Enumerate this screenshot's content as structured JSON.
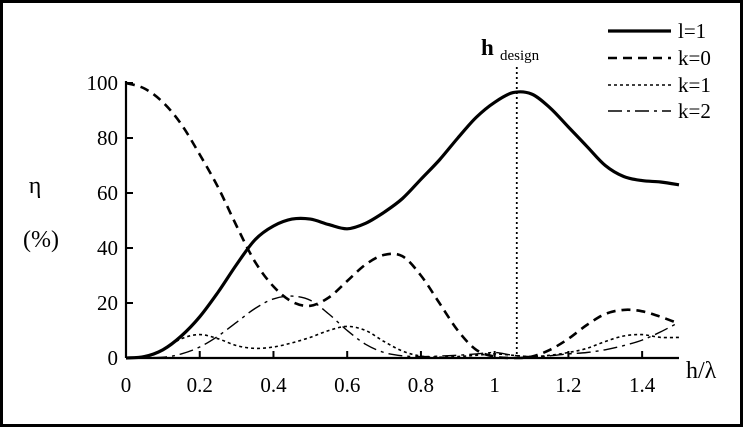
{
  "chart_data": {
    "type": "line",
    "title": "",
    "xlabel": "h/λ",
    "ylabel": "η",
    "ylabel_unit": "(%)",
    "xlim": [
      0,
      1.5
    ],
    "ylim": [
      0,
      100
    ],
    "x_ticks": [
      "0",
      "0.2",
      "0.4",
      "0.6",
      "0.8",
      "1",
      "1.2",
      "1.4"
    ],
    "y_ticks": [
      "0",
      "20",
      "40",
      "60",
      "80",
      "100"
    ],
    "grid": false,
    "legend_position": "top-right",
    "annotation": {
      "label_main": "h",
      "label_sub": "design",
      "x": 1.06
    },
    "series": [
      {
        "name": "l=1",
        "style": "solid",
        "points": [
          [
            0,
            0
          ],
          [
            0.05,
            0.5
          ],
          [
            0.1,
            3
          ],
          [
            0.15,
            8
          ],
          [
            0.2,
            15
          ],
          [
            0.25,
            24
          ],
          [
            0.3,
            34
          ],
          [
            0.35,
            43
          ],
          [
            0.4,
            48
          ],
          [
            0.45,
            50.5
          ],
          [
            0.5,
            50.5
          ],
          [
            0.55,
            48.5
          ],
          [
            0.6,
            47
          ],
          [
            0.65,
            49
          ],
          [
            0.7,
            53
          ],
          [
            0.75,
            58
          ],
          [
            0.8,
            65
          ],
          [
            0.85,
            72
          ],
          [
            0.9,
            80
          ],
          [
            0.95,
            87.5
          ],
          [
            1.0,
            93
          ],
          [
            1.05,
            96.5
          ],
          [
            1.1,
            96
          ],
          [
            1.15,
            91
          ],
          [
            1.2,
            84
          ],
          [
            1.25,
            77
          ],
          [
            1.3,
            70
          ],
          [
            1.35,
            66
          ],
          [
            1.4,
            64.5
          ],
          [
            1.45,
            64
          ],
          [
            1.5,
            63
          ]
        ]
      },
      {
        "name": "k=0",
        "style": "dashed",
        "points": [
          [
            0,
            100
          ],
          [
            0.05,
            98
          ],
          [
            0.1,
            93
          ],
          [
            0.15,
            85
          ],
          [
            0.2,
            74
          ],
          [
            0.25,
            62
          ],
          [
            0.3,
            48
          ],
          [
            0.35,
            35
          ],
          [
            0.4,
            26
          ],
          [
            0.45,
            20.5
          ],
          [
            0.5,
            19
          ],
          [
            0.55,
            22
          ],
          [
            0.6,
            28
          ],
          [
            0.65,
            34
          ],
          [
            0.7,
            37.5
          ],
          [
            0.75,
            37
          ],
          [
            0.8,
            30
          ],
          [
            0.85,
            20
          ],
          [
            0.9,
            10
          ],
          [
            0.95,
            3
          ],
          [
            1.0,
            0.5
          ],
          [
            1.05,
            0
          ],
          [
            1.1,
            0.5
          ],
          [
            1.15,
            3
          ],
          [
            1.2,
            7
          ],
          [
            1.25,
            12
          ],
          [
            1.3,
            16
          ],
          [
            1.35,
            17.5
          ],
          [
            1.4,
            17
          ],
          [
            1.45,
            15
          ],
          [
            1.5,
            12.5
          ]
        ]
      },
      {
        "name": "k=1",
        "style": "dotted",
        "points": [
          [
            0,
            0
          ],
          [
            0.05,
            0.5
          ],
          [
            0.1,
            3
          ],
          [
            0.15,
            7
          ],
          [
            0.2,
            8.5
          ],
          [
            0.25,
            7
          ],
          [
            0.3,
            4.5
          ],
          [
            0.35,
            3.5
          ],
          [
            0.4,
            4
          ],
          [
            0.45,
            5.5
          ],
          [
            0.5,
            7.5
          ],
          [
            0.55,
            10
          ],
          [
            0.6,
            11.5
          ],
          [
            0.65,
            10
          ],
          [
            0.7,
            6
          ],
          [
            0.75,
            2.5
          ],
          [
            0.8,
            0.7
          ],
          [
            0.85,
            0.3
          ],
          [
            0.9,
            0.5
          ],
          [
            0.95,
            1
          ],
          [
            1.0,
            1.5
          ],
          [
            1.05,
            1
          ],
          [
            1.1,
            0.5
          ],
          [
            1.15,
            1
          ],
          [
            1.2,
            2
          ],
          [
            1.25,
            3.5
          ],
          [
            1.3,
            6
          ],
          [
            1.35,
            8
          ],
          [
            1.4,
            8.5
          ],
          [
            1.45,
            7.5
          ],
          [
            1.5,
            7.5
          ]
        ]
      },
      {
        "name": "k=2",
        "style": "dashdot",
        "points": [
          [
            0,
            0
          ],
          [
            0.1,
            0.3
          ],
          [
            0.15,
            1.5
          ],
          [
            0.2,
            4
          ],
          [
            0.25,
            8
          ],
          [
            0.3,
            13
          ],
          [
            0.35,
            18
          ],
          [
            0.4,
            21.5
          ],
          [
            0.45,
            22.5
          ],
          [
            0.5,
            21
          ],
          [
            0.55,
            16
          ],
          [
            0.6,
            10
          ],
          [
            0.65,
            5
          ],
          [
            0.7,
            2
          ],
          [
            0.75,
            0.8
          ],
          [
            0.8,
            0.5
          ],
          [
            0.85,
            0.7
          ],
          [
            0.9,
            1
          ],
          [
            0.95,
            1.5
          ],
          [
            1.0,
            2
          ],
          [
            1.05,
            1
          ],
          [
            1.1,
            0.5
          ],
          [
            1.15,
            0.8
          ],
          [
            1.2,
            1.5
          ],
          [
            1.25,
            2
          ],
          [
            1.3,
            3
          ],
          [
            1.35,
            4.5
          ],
          [
            1.4,
            6.5
          ],
          [
            1.45,
            9.5
          ],
          [
            1.5,
            13
          ]
        ]
      }
    ]
  }
}
